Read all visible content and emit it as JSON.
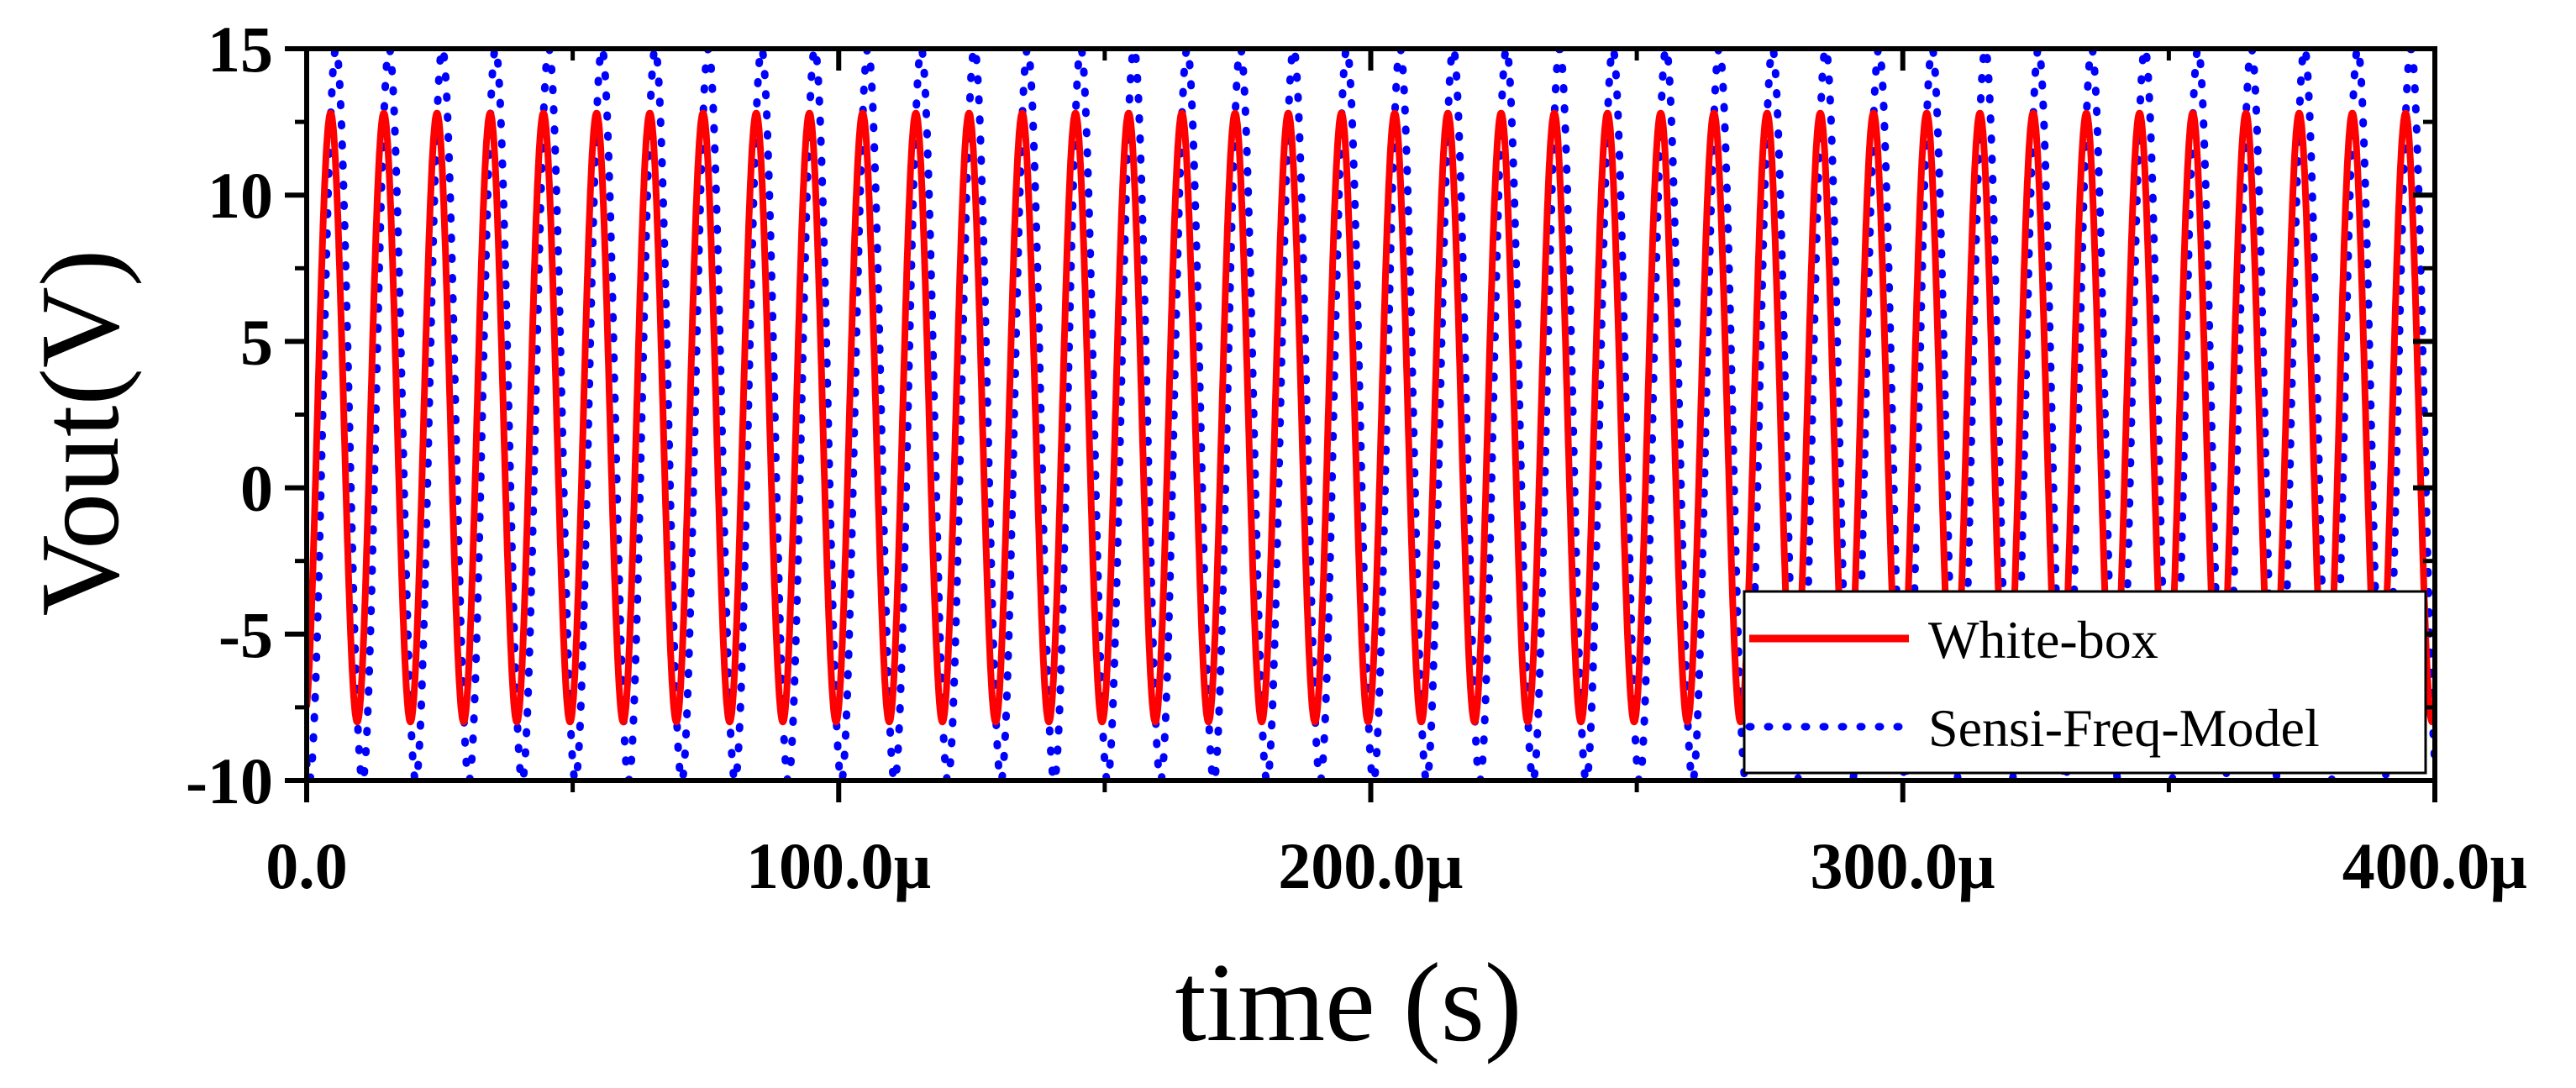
{
  "chart_data": {
    "type": "line",
    "title": "",
    "xlabel": "time (s)",
    "ylabel": "Vout(V)",
    "xlim": [
      0,
      400
    ],
    "ylim": [
      -10,
      15
    ],
    "x_unit_note": "x values in microseconds",
    "x_ticks": [
      0,
      100,
      200,
      300,
      400
    ],
    "x_tick_labels": [
      "0.0",
      "100.0µ",
      "200.0µ",
      "300.0µ",
      "400.0µ"
    ],
    "y_ticks": [
      -10,
      -5,
      0,
      5,
      10,
      15
    ],
    "y_tick_labels": [
      "-10",
      "-5",
      "0",
      "5",
      "10",
      "15"
    ],
    "legend_position": "bottom-right",
    "series": [
      {
        "name": "White-box",
        "color": "#ff0000",
        "style": "solid",
        "period": 10,
        "phase": 2,
        "high": 12.8,
        "low": -8.0
      },
      {
        "name": "Sensi-Freq-Model",
        "color": "#0000ff",
        "style": "dotted",
        "period": 10,
        "phase": 3,
        "high": 15.0,
        "low": -10.0
      }
    ]
  }
}
